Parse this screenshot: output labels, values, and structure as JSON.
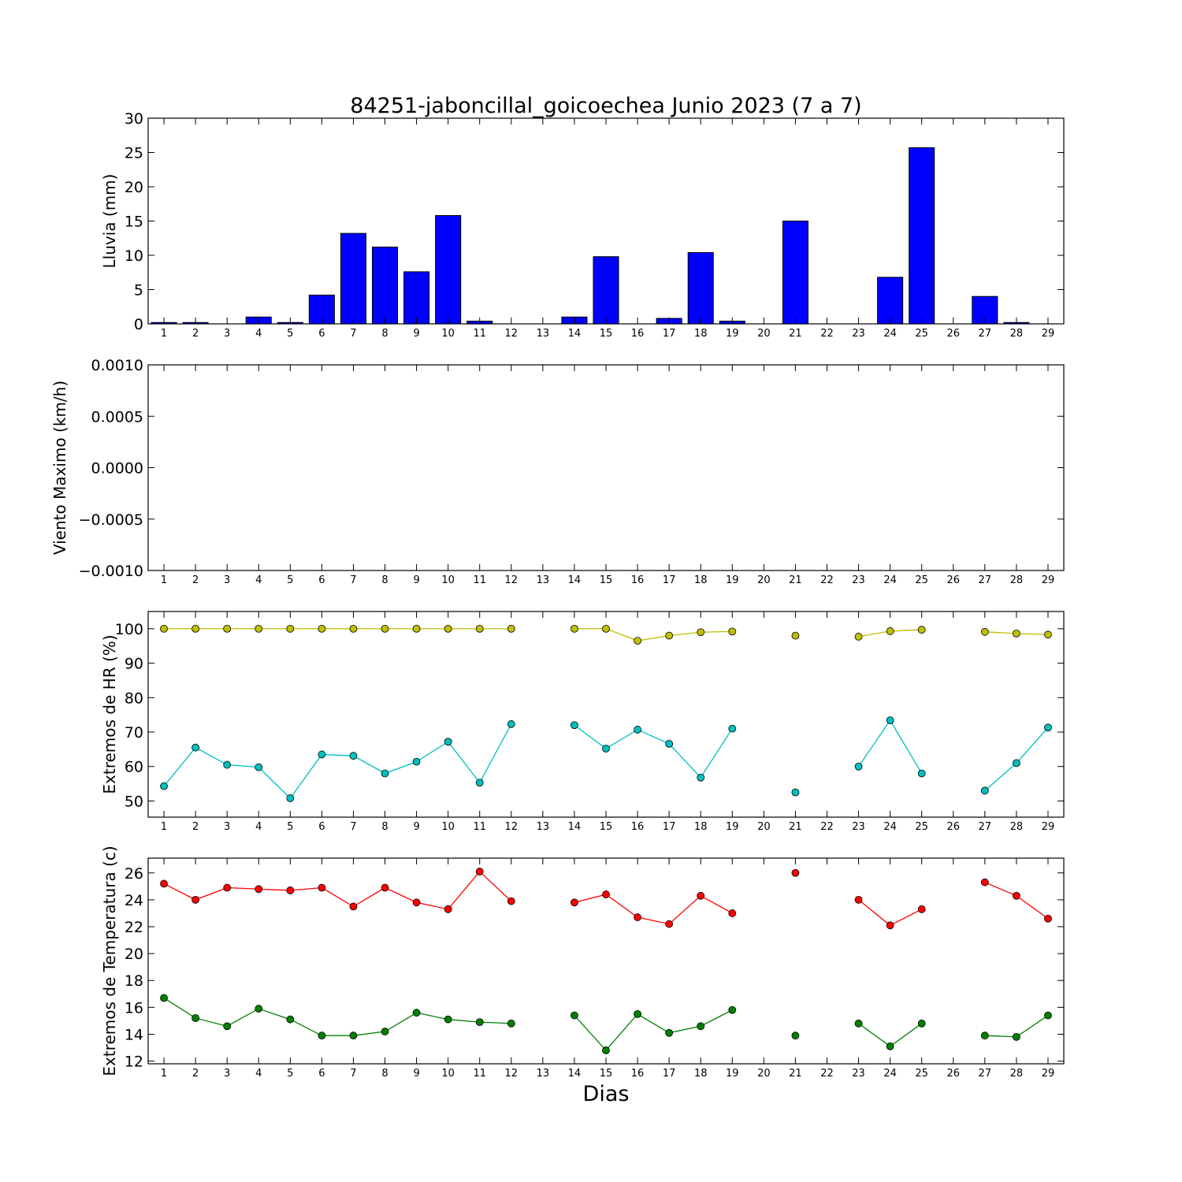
{
  "chart_data": {
    "title": "84251-jaboncillal_goicoechea Junio 2023  (7 a 7)",
    "xlabel": "Dias",
    "x_ticks": [
      1,
      2,
      3,
      4,
      5,
      6,
      7,
      8,
      9,
      10,
      11,
      12,
      13,
      14,
      15,
      16,
      17,
      18,
      19,
      20,
      21,
      22,
      23,
      24,
      25,
      26,
      27,
      28,
      29
    ],
    "panels": [
      {
        "type": "bar",
        "ylabel": "Lluvia (mm)",
        "ylim": [
          0,
          30
        ],
        "yticks": [
          0,
          5,
          10,
          15,
          20,
          25,
          30
        ],
        "ytick_labels": [
          "0",
          "5",
          "10",
          "15",
          "20",
          "25",
          "30"
        ],
        "series": [
          {
            "color": "#0000ff",
            "x": [
              1,
              2,
              3,
              4,
              5,
              6,
              7,
              8,
              9,
              10,
              11,
              12,
              13,
              14,
              15,
              16,
              17,
              18,
              19,
              20,
              21,
              22,
              23,
              24,
              25,
              26,
              27,
              28,
              29
            ],
            "values": [
              0.2,
              0.2,
              0,
              1.0,
              0.2,
              4.2,
              13.2,
              11.2,
              7.6,
              15.8,
              0.4,
              0,
              0,
              1.0,
              9.8,
              0,
              0.8,
              10.4,
              0.4,
              0,
              15.0,
              0,
              0,
              6.8,
              25.7,
              0,
              4.0,
              0.2,
              0
            ]
          }
        ]
      },
      {
        "type": "line",
        "ylabel": "Viento Maximo (km/h)",
        "ylim": [
          -0.001,
          0.001
        ],
        "yticks": [
          -0.001,
          -0.0005,
          0,
          0.0005,
          0.001
        ],
        "ytick_labels": [
          "−0.0010",
          "−0.0005",
          "0.0000",
          "0.0005",
          "0.0010"
        ],
        "series": []
      },
      {
        "type": "line",
        "ylabel": "Extremos de HR (%)",
        "ylim": [
          45.3,
          105
        ],
        "yticks": [
          50,
          60,
          70,
          80,
          90,
          100
        ],
        "ytick_labels": [
          "50",
          "60",
          "70",
          "80",
          "90",
          "100"
        ],
        "series": [
          {
            "color": "#bfbf00",
            "x": [
              1,
              2,
              3,
              4,
              5,
              6,
              7,
              8,
              9,
              10,
              11,
              12,
              13,
              14,
              15,
              16,
              17,
              18,
              19,
              20,
              21,
              22,
              23,
              24,
              25,
              26,
              27,
              28,
              29
            ],
            "values": [
              100,
              100,
              100,
              100,
              100,
              100,
              100,
              100,
              100,
              100,
              100,
              100,
              null,
              100,
              100,
              96.5,
              98,
              99,
              99.2,
              null,
              98,
              null,
              97.7,
              99.3,
              99.7,
              null,
              99.1,
              98.6,
              98.3
            ]
          },
          {
            "color": "#00bfbf",
            "x": [
              1,
              2,
              3,
              4,
              5,
              6,
              7,
              8,
              9,
              10,
              11,
              12,
              13,
              14,
              15,
              16,
              17,
              18,
              19,
              20,
              21,
              22,
              23,
              24,
              25,
              26,
              27,
              28,
              29
            ],
            "values": [
              54.3,
              65.5,
              60.5,
              59.8,
              50.8,
              63.5,
              63.1,
              58,
              61.4,
              67.2,
              55.3,
              72.3,
              null,
              72,
              65.2,
              70.7,
              66.6,
              56.8,
              71,
              null,
              52.5,
              null,
              60,
              73.4,
              58,
              null,
              53,
              61,
              71.3
            ]
          }
        ]
      },
      {
        "type": "line",
        "ylabel": "Extremos de Temperatura (c)",
        "ylim": [
          11.8,
          27.1
        ],
        "yticks": [
          12,
          14,
          16,
          18,
          20,
          22,
          24,
          26
        ],
        "ytick_labels": [
          "12",
          "14",
          "16",
          "18",
          "20",
          "22",
          "24",
          "26"
        ],
        "series": [
          {
            "color": "#ff0000",
            "x": [
              1,
              2,
              3,
              4,
              5,
              6,
              7,
              8,
              9,
              10,
              11,
              12,
              13,
              14,
              15,
              16,
              17,
              18,
              19,
              20,
              21,
              22,
              23,
              24,
              25,
              26,
              27,
              28,
              29
            ],
            "values": [
              25.2,
              24,
              24.9,
              24.8,
              24.7,
              24.9,
              23.5,
              24.9,
              23.8,
              23.3,
              26.1,
              23.9,
              null,
              23.8,
              24.4,
              22.7,
              22.2,
              24.3,
              23,
              null,
              26,
              null,
              24,
              22.1,
              23.3,
              null,
              25.3,
              24.3,
              22.6
            ]
          },
          {
            "color": "#008000",
            "x": [
              1,
              2,
              3,
              4,
              5,
              6,
              7,
              8,
              9,
              10,
              11,
              12,
              13,
              14,
              15,
              16,
              17,
              18,
              19,
              20,
              21,
              22,
              23,
              24,
              25,
              26,
              27,
              28,
              29
            ],
            "values": [
              16.7,
              15.2,
              14.6,
              15.9,
              15.1,
              13.9,
              13.9,
              14.2,
              15.6,
              15.1,
              14.9,
              14.8,
              null,
              15.4,
              12.8,
              15.5,
              14.1,
              14.6,
              15.8,
              null,
              13.9,
              null,
              14.8,
              13.1,
              14.8,
              null,
              13.9,
              13.8,
              15.4
            ]
          }
        ]
      }
    ]
  }
}
